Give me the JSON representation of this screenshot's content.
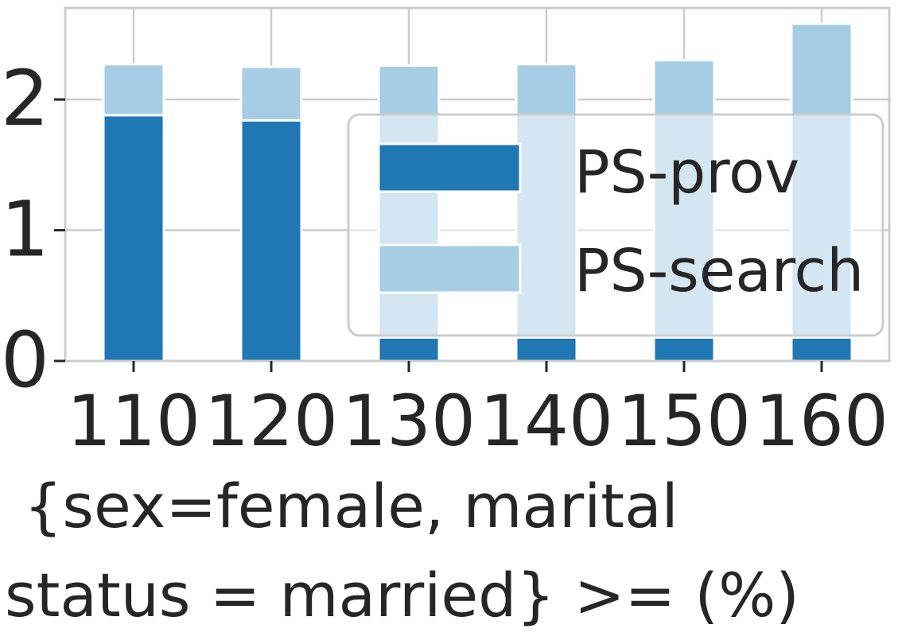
{
  "chart_data": {
    "type": "bar",
    "stacked": true,
    "categories": [
      "110",
      "120",
      "130",
      "140",
      "150",
      "160"
    ],
    "series": [
      {
        "name": "PS-prov",
        "values": [
          1.88,
          1.84,
          0.18,
          0.18,
          0.18,
          0.18
        ],
        "color": "#1f77b4"
      },
      {
        "name": "PS-search",
        "values": [
          0.39,
          0.41,
          2.08,
          2.09,
          2.12,
          2.4
        ],
        "color": "#a6cde3"
      }
    ],
    "yticks": [
      "0",
      "1",
      "2"
    ],
    "ylim": [
      0,
      2.7
    ],
    "xlabel_lines": [
      "{sex=female, marital",
      "status = married} >= (%)"
    ],
    "ylabel": "",
    "title": "",
    "grid": true,
    "legend_position": "center-right"
  }
}
